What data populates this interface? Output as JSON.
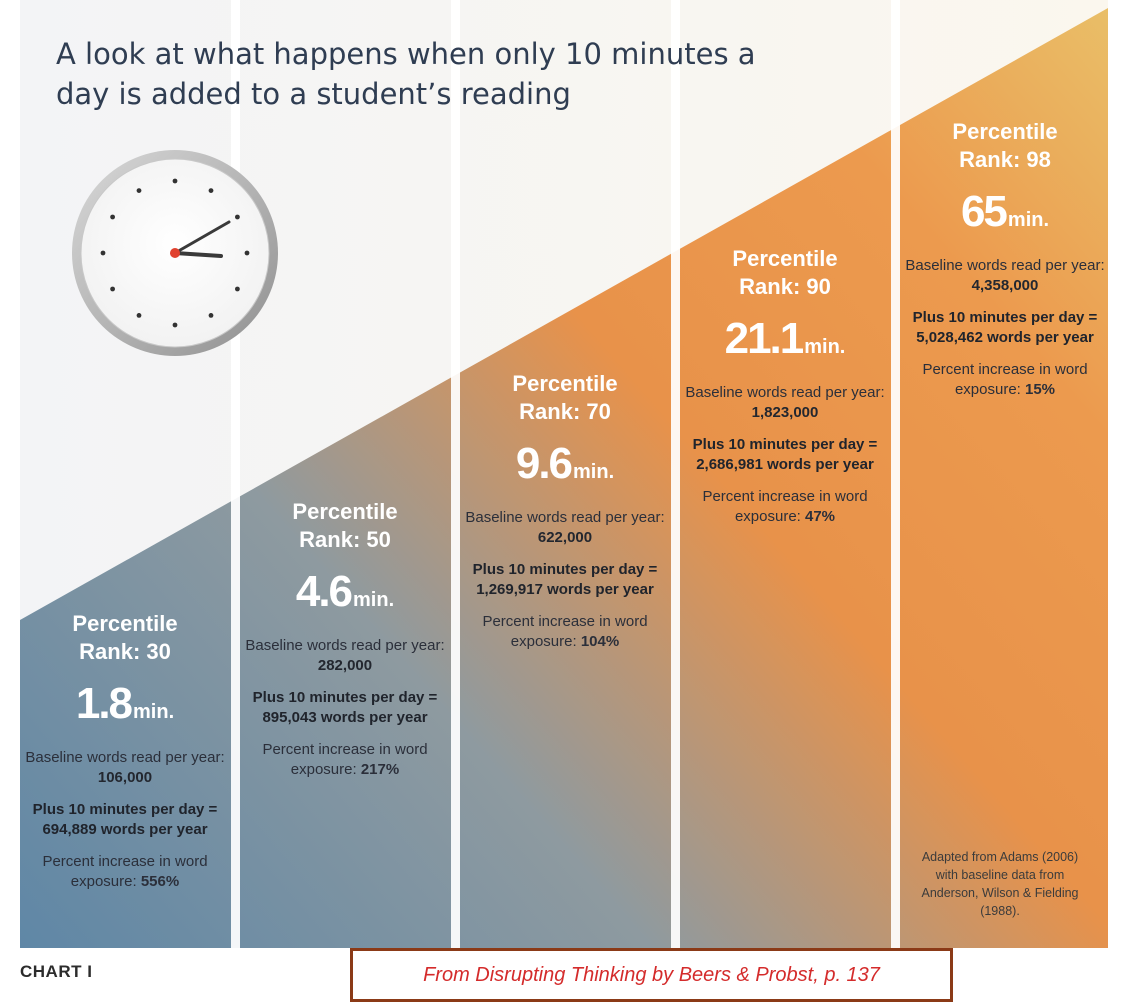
{
  "chart_data": {
    "type": "bar",
    "title": "A look at what happens when only 10 minutes a day is added to a student’s reading",
    "label": "CHART I",
    "unit": "min.",
    "labels": {
      "rank_prefix": "Percentile Rank:",
      "baseline": "Baseline words read per year:",
      "plus_prefix": "Plus 10 minutes per day =",
      "plus_suffix": "words per year",
      "percent_prefix": "Percent increase in word exposure:"
    },
    "categories": [
      "Percentile Rank: 30",
      "Percentile Rank: 50",
      "Percentile Rank: 70",
      "Percentile Rank: 90",
      "Percentile Rank: 98"
    ],
    "series": [
      {
        "name": "Percentile Rank",
        "values": [
          30,
          50,
          70,
          90,
          98
        ]
      },
      {
        "name": "Minutes read per day",
        "values": [
          1.8,
          4.6,
          9.6,
          21.1,
          65
        ]
      },
      {
        "name": "Baseline words read per year",
        "values": [
          106000,
          282000,
          622000,
          1823000,
          4358000
        ]
      },
      {
        "name": "Words per year with 10 extra minutes per day",
        "values": [
          694889,
          895043,
          1269917,
          2686981,
          5028462
        ]
      },
      {
        "name": "Percent increase in word exposure",
        "values": [
          556,
          217,
          104,
          47,
          15
        ]
      }
    ],
    "columns": [
      {
        "rank": "Percentile Rank: 30",
        "minutes": "1.8",
        "baseline": "106,000",
        "plus": "Plus 10 minutes per day = 694,889 words per year",
        "percent": "556%"
      },
      {
        "rank": "Percentile Rank: 50",
        "minutes": "4.6",
        "baseline": "282,000",
        "plus": "Plus 10 minutes per day = 895,043 words per year",
        "percent": "217%"
      },
      {
        "rank": "Percentile Rank: 70",
        "minutes": "9.6",
        "baseline": "622,000",
        "plus": "Plus 10 minutes per day = 1,269,917 words per year",
        "percent": "104%"
      },
      {
        "rank": "Percentile Rank: 90",
        "minutes": "21.1",
        "baseline": "1,823,000",
        "plus": "Plus 10 minutes per day = 2,686,981 words per year",
        "percent": "47%"
      },
      {
        "rank": "Percentile Rank: 98",
        "minutes": "65",
        "baseline": "4,358,000",
        "plus": "Plus 10 minutes per day = 5,028,462 words per year",
        "percent": "15%"
      }
    ],
    "note": "Adapted from Adams (2006) with baseline data from Anderson, Wilson & Fielding (1988).",
    "source": "From Disrupting Thinking by Beers & Probst, p. 137",
    "colors": {
      "blue": "#5f87a6",
      "gold": "#e7b35e",
      "orange": "#e8924a",
      "title": "#2f3d52",
      "source_text": "#d42b2b",
      "source_border": "#8b3a17"
    }
  }
}
